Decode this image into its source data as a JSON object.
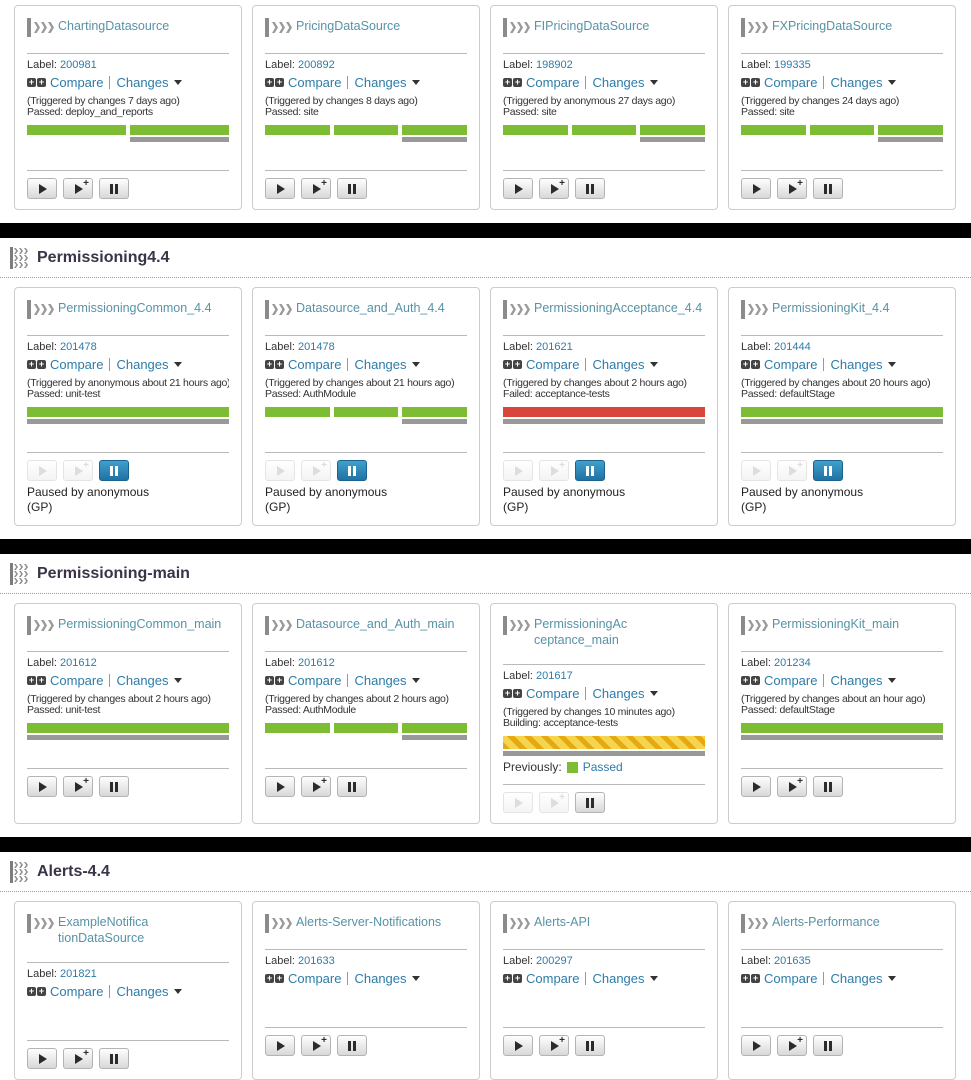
{
  "strings": {
    "label_prefix": "Label:",
    "compare": "Compare",
    "changes": "Changes",
    "previously": "Previously:"
  },
  "groups": [
    {
      "name": null,
      "pipelines": [
        {
          "name": "ChartingDatasource",
          "label": "200981",
          "triggered": "(Triggered by changes 7 days ago)",
          "status_line": "Passed: deploy_and_reports",
          "stages": [
            "passed",
            "passed"
          ],
          "buttons": {
            "play": "enabled",
            "trigger": "enabled",
            "pause": "enabled"
          }
        },
        {
          "name": "PricingDataSource",
          "label": "200892",
          "triggered": "(Triggered by changes 8 days ago)",
          "status_line": "Passed: site",
          "stages": [
            "passed",
            "passed",
            "passed"
          ],
          "buttons": {
            "play": "enabled",
            "trigger": "enabled",
            "pause": "enabled"
          }
        },
        {
          "name": "FIPricingDataSource",
          "label": "198902",
          "triggered": "(Triggered by anonymous 27 days ago)",
          "status_line": "Passed: site",
          "stages": [
            "passed",
            "passed",
            "passed"
          ],
          "buttons": {
            "play": "enabled",
            "trigger": "enabled",
            "pause": "enabled"
          }
        },
        {
          "name": "FXPricingDataSource",
          "label": "199335",
          "triggered": "(Triggered by changes 24 days ago)",
          "status_line": "Passed: site",
          "stages": [
            "passed",
            "passed",
            "passed"
          ],
          "buttons": {
            "play": "enabled",
            "trigger": "enabled",
            "pause": "enabled"
          }
        }
      ]
    },
    {
      "name": "Permissioning4.4",
      "pipelines": [
        {
          "name": "PermissioningCommon_4.4",
          "label": "201478",
          "triggered": "(Triggered by anonymous about 21 hours ago)",
          "status_line": "Passed: unit-test",
          "stages": [
            "passed"
          ],
          "buttons": {
            "play": "disabled",
            "trigger": "disabled",
            "pause": "active"
          },
          "paused_by": "Paused by anonymous",
          "paused_tag": "(GP)"
        },
        {
          "name": "Datasource_and_Auth_4.4",
          "label": "201478",
          "triggered": "(Triggered by changes about 21 hours ago)",
          "status_line": "Passed: AuthModule",
          "stages": [
            "passed",
            "passed",
            "passed"
          ],
          "buttons": {
            "play": "disabled",
            "trigger": "disabled",
            "pause": "active"
          },
          "paused_by": "Paused by anonymous",
          "paused_tag": "(GP)"
        },
        {
          "name": "PermissioningAcceptance_4.4",
          "label": "201621",
          "triggered": "(Triggered by changes about 2 hours ago)",
          "status_line": "Failed: acceptance-tests",
          "stages": [
            "failed"
          ],
          "buttons": {
            "play": "disabled",
            "trigger": "disabled",
            "pause": "active"
          },
          "paused_by": "Paused by anonymous",
          "paused_tag": "(GP)"
        },
        {
          "name": "PermissioningKit_4.4",
          "label": "201444",
          "triggered": "(Triggered by changes about 20 hours ago)",
          "status_line": "Passed: defaultStage",
          "stages": [
            "passed"
          ],
          "buttons": {
            "play": "disabled",
            "trigger": "disabled",
            "pause": "active"
          },
          "paused_by": "Paused by anonymous",
          "paused_tag": "(GP)"
        }
      ]
    },
    {
      "name": "Permissioning-main",
      "pipelines": [
        {
          "name": "PermissioningCommon_main",
          "label": "201612",
          "triggered": "(Triggered by changes about 2 hours ago)",
          "status_line": "Passed: unit-test",
          "stages": [
            "passed"
          ],
          "buttons": {
            "play": "enabled",
            "trigger": "enabled",
            "pause": "enabled"
          }
        },
        {
          "name": "Datasource_and_Auth_main",
          "label": "201612",
          "triggered": "(Triggered by changes about 2 hours ago)",
          "status_line": "Passed: AuthModule",
          "stages": [
            "passed",
            "passed",
            "passed"
          ],
          "buttons": {
            "play": "enabled",
            "trigger": "enabled",
            "pause": "enabled"
          }
        },
        {
          "name": "PermissioningAcceptance_main",
          "label": "201617",
          "triggered": "(Triggered by changes 10 minutes ago)",
          "status_line": "Building: acceptance-tests",
          "stages": [
            "building"
          ],
          "previously": {
            "status": "Passed"
          },
          "buttons": {
            "play": "disabled",
            "trigger": "disabled",
            "pause": "enabled"
          }
        },
        {
          "name": "PermissioningKit_main",
          "label": "201234",
          "triggered": "(Triggered by changes about an hour ago)",
          "status_line": "Passed: defaultStage",
          "stages": [
            "passed"
          ],
          "buttons": {
            "play": "enabled",
            "trigger": "enabled",
            "pause": "enabled"
          }
        }
      ]
    },
    {
      "name": "Alerts-4.4",
      "pipelines": [
        {
          "name": "ExampleNotificationDataSource",
          "label": "201821",
          "triggered": "",
          "status_line": "",
          "stages": [],
          "buttons": {
            "play": "enabled",
            "trigger": "enabled",
            "pause": "enabled"
          }
        },
        {
          "name": "Alerts-Server-Notifications",
          "label": "201633",
          "triggered": "",
          "status_line": "",
          "stages": [],
          "buttons": {
            "play": "enabled",
            "trigger": "enabled",
            "pause": "enabled"
          }
        },
        {
          "name": "Alerts-API",
          "label": "200297",
          "triggered": "",
          "status_line": "",
          "stages": [],
          "buttons": {
            "play": "enabled",
            "trigger": "enabled",
            "pause": "enabled"
          }
        },
        {
          "name": "Alerts-Performance",
          "label": "201635",
          "triggered": "",
          "status_line": "",
          "stages": [],
          "buttons": {
            "play": "enabled",
            "trigger": "enabled",
            "pause": "enabled"
          }
        }
      ]
    }
  ]
}
